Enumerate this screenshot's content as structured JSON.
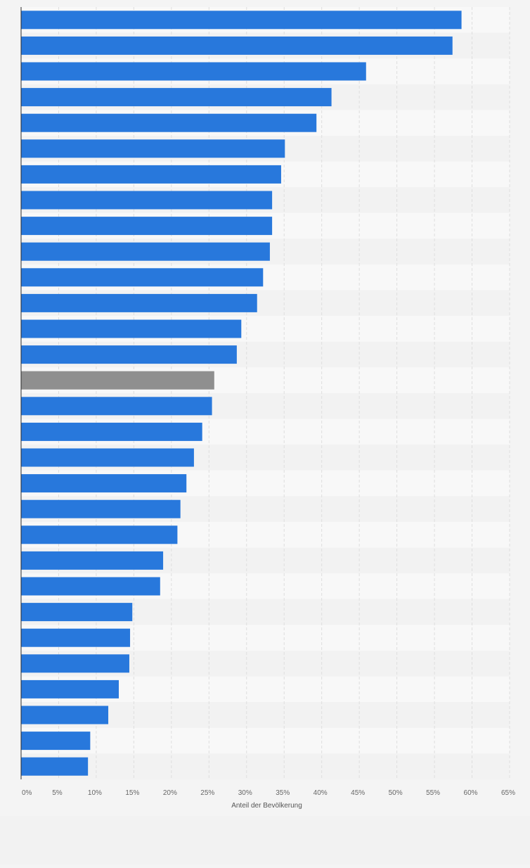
{
  "chart_data": {
    "type": "bar",
    "orientation": "horizontal",
    "xlabel": "Anteil der Bevölkerung",
    "xlim": [
      0,
      65
    ],
    "x_ticks": [
      "0%",
      "5%",
      "10%",
      "15%",
      "20%",
      "25%",
      "30%",
      "35%",
      "40%",
      "45%",
      "50%",
      "55%",
      "60%",
      "65%"
    ],
    "grid": true,
    "category_labels_visible": false,
    "values": [
      58.6,
      57.4,
      45.9,
      41.3,
      39.3,
      35.1,
      34.6,
      33.4,
      33.4,
      33.1,
      32.2,
      31.4,
      29.3,
      28.7,
      25.7,
      25.4,
      24.1,
      23.0,
      22.0,
      21.2,
      20.8,
      18.9,
      18.5,
      14.8,
      14.5,
      14.4,
      13.0,
      11.6,
      9.2,
      8.9
    ],
    "highlight_index": 14
  },
  "colors": {
    "bar": "#2878dc",
    "highlight_bar": "#8f8f8f",
    "band_light": "#f8f8f8",
    "band_dark": "#f2f2f2",
    "gridline": "#dedede",
    "axis": "#2c2c2c"
  }
}
